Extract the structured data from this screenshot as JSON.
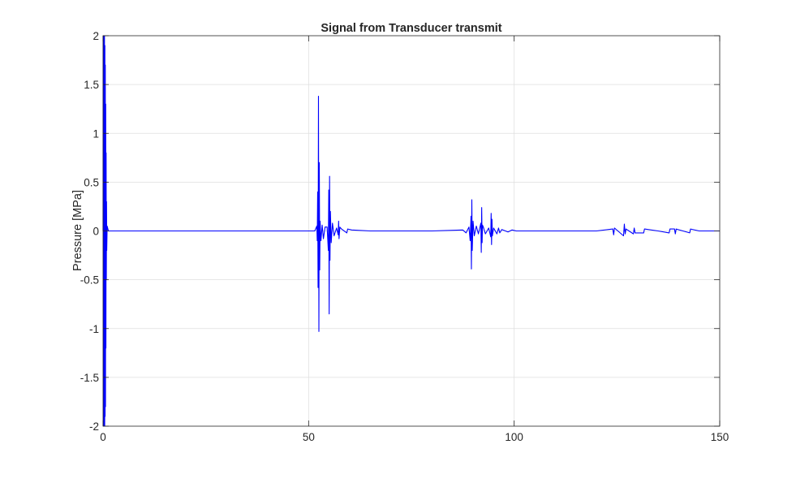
{
  "chart_data": {
    "type": "line",
    "title": "Signal from Transducer transmit",
    "xlabel": "",
    "ylabel": "Pressure [MPa]",
    "xlim": [
      0,
      150
    ],
    "ylim": [
      -2,
      2
    ],
    "xticks": [
      0,
      50,
      100,
      150
    ],
    "xtick_labels": [
      "0",
      "50",
      "100",
      "150"
    ],
    "yticks": [
      -2,
      -1.5,
      -1,
      -0.5,
      0,
      0.5,
      1,
      1.5,
      2
    ],
    "ytick_labels": [
      "-2",
      "-1.5",
      "-1",
      "-0.5",
      "0",
      "0.5",
      "1",
      "1.5",
      "2"
    ],
    "grid": true,
    "legend": "none",
    "series": [
      {
        "color": "#0000ff",
        "x": [
          0,
          0.05,
          0.1,
          0.15,
          0.2,
          0.25,
          0.3,
          0.35,
          0.4,
          0.45,
          0.5,
          0.55,
          0.6,
          0.65,
          0.7,
          0.75,
          0.8,
          0.85,
          0.9,
          1.0,
          1.3,
          10,
          30,
          51.5,
          52.0,
          52.1,
          52.2,
          52.3,
          52.4,
          52.5,
          52.6,
          52.7,
          52.8,
          53.0,
          53.3,
          53.6,
          54.0,
          54.5,
          54.8,
          54.9,
          55.0,
          55.1,
          55.2,
          55.3,
          55.5,
          55.8,
          56.2,
          56.8,
          57.2,
          57.3,
          57.4,
          57.6,
          58.0,
          59.3,
          59.5,
          60.5,
          65,
          70,
          80,
          87.5,
          88.3,
          89.0,
          89.3,
          89.5,
          89.6,
          89.7,
          89.8,
          90.0,
          90.3,
          90.8,
          91.3,
          91.9,
          92.0,
          92.1,
          92.2,
          92.3,
          92.5,
          93.0,
          93.8,
          94.3,
          94.4,
          94.5,
          94.6,
          94.7,
          95.0,
          95.8,
          96.2,
          96.5,
          97.0,
          98.5,
          99.5,
          100.5,
          105,
          110,
          115,
          120,
          124.0,
          124.2,
          124.4,
          126.6,
          126.8,
          127.0,
          127.2,
          129.0,
          129.2,
          129.4,
          131.5,
          131.7,
          135,
          137.7,
          137.9,
          139.0,
          139.2,
          139.4,
          142.7,
          142.9,
          145,
          150
        ],
        "y": [
          0,
          2.0,
          -2.0,
          2.0,
          -2.0,
          2.0,
          -2.0,
          2.0,
          -2.0,
          1.9,
          -1.9,
          1.7,
          -1.8,
          1.3,
          -1.2,
          0.8,
          -0.5,
          0.3,
          -0.2,
          0.05,
          0,
          0,
          0,
          0,
          0.05,
          -0.1,
          0.4,
          -0.58,
          1.38,
          -1.03,
          0.7,
          -0.4,
          0.1,
          -0.1,
          0.06,
          -0.08,
          0.04,
          0.04,
          -0.2,
          0.42,
          -0.85,
          0.56,
          -0.3,
          0.2,
          -0.12,
          0.08,
          -0.05,
          0.03,
          -0.04,
          0.1,
          -0.08,
          0.04,
          0.02,
          -0.02,
          0.02,
          0.01,
          0,
          0,
          0,
          0.01,
          -0.02,
          0.04,
          -0.1,
          0.15,
          -0.39,
          0.32,
          -0.2,
          0.1,
          -0.05,
          0.05,
          -0.03,
          0.08,
          -0.22,
          0.24,
          -0.12,
          0.06,
          0.04,
          -0.03,
          0.03,
          -0.06,
          0.18,
          -0.14,
          0.12,
          -0.05,
          0.03,
          -0.03,
          0.03,
          -0.02,
          0.015,
          -0.01,
          0.01,
          0,
          0,
          0,
          0,
          0,
          0.02,
          -0.04,
          0.03,
          -0.05,
          0.07,
          -0.03,
          0.02,
          -0.03,
          0.03,
          -0.02,
          -0.02,
          0.02,
          0,
          -0.02,
          0.02,
          0.02,
          -0.03,
          0.02,
          -0.02,
          0.02,
          0,
          0
        ]
      }
    ]
  }
}
